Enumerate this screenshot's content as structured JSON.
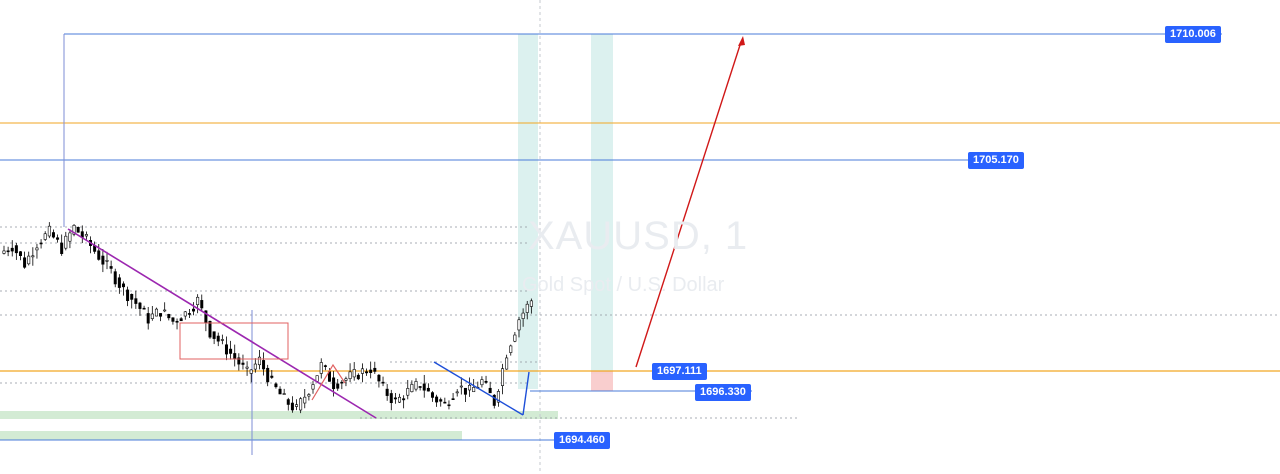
{
  "watermark": {
    "symbol": "XAUUSD, 1",
    "description": "Gold Spot / U.S. Dollar"
  },
  "colors": {
    "candle": "#000000",
    "blue_line": "#4a7bd8",
    "orange_line": "#f2a623",
    "trend_purple": "#9c27b0",
    "arrow_red": "#d01818",
    "shade_teal": "#b2dfdb",
    "zone_green": "#c8e6c9",
    "box_red": "#e06060"
  },
  "price_labels": [
    "1710.006",
    "1705.170",
    "1697.111",
    "1696.330",
    "1694.460"
  ],
  "chart_data": {
    "type": "candlestick",
    "instrument": "XAUUSD",
    "timeframe": "1",
    "ylim": [
      1693.7,
      1711.3
    ],
    "levels": [
      {
        "label": "1710.006",
        "price": 1710.006,
        "color": "blue"
      },
      {
        "label": "1705.170",
        "price": 1705.17,
        "color": "blue"
      },
      {
        "label": "1697.111",
        "price": 1697.111,
        "color": "orange"
      },
      {
        "label": "1696.330",
        "price": 1696.33,
        "color": "blue"
      },
      {
        "label": "1694.460",
        "price": 1694.46,
        "color": "blue"
      }
    ],
    "additional_levels": [
      {
        "price": 1706.9,
        "color": "orange"
      },
      {
        "price": 1697.1,
        "color": "orange"
      }
    ],
    "price_path": [
      {
        "t": 0,
        "p": 1701.6
      },
      {
        "t": 3,
        "p": 1701.9
      },
      {
        "t": 6,
        "p": 1701.2
      },
      {
        "t": 9,
        "p": 1702.0
      },
      {
        "t": 12,
        "p": 1702.4
      },
      {
        "t": 15,
        "p": 1701.8
      },
      {
        "t": 18,
        "p": 1702.6
      },
      {
        "t": 21,
        "p": 1702.1
      },
      {
        "t": 24,
        "p": 1701.5
      },
      {
        "t": 27,
        "p": 1700.9
      },
      {
        "t": 30,
        "p": 1700.2
      },
      {
        "t": 33,
        "p": 1699.7
      },
      {
        "t": 36,
        "p": 1699.1
      },
      {
        "t": 39,
        "p": 1699.4
      },
      {
        "t": 42,
        "p": 1699.0
      },
      {
        "t": 45,
        "p": 1699.3
      },
      {
        "t": 48,
        "p": 1699.8
      },
      {
        "t": 51,
        "p": 1698.6
      },
      {
        "t": 54,
        "p": 1698.1
      },
      {
        "t": 57,
        "p": 1697.6
      },
      {
        "t": 60,
        "p": 1697.0
      },
      {
        "t": 63,
        "p": 1697.5
      },
      {
        "t": 66,
        "p": 1696.6
      },
      {
        "t": 69,
        "p": 1696.0
      },
      {
        "t": 72,
        "p": 1695.6
      },
      {
        "t": 75,
        "p": 1696.4
      },
      {
        "t": 78,
        "p": 1697.3
      },
      {
        "t": 81,
        "p": 1696.6
      },
      {
        "t": 84,
        "p": 1696.8
      },
      {
        "t": 87,
        "p": 1697.0
      },
      {
        "t": 90,
        "p": 1697.2
      },
      {
        "t": 93,
        "p": 1696.4
      },
      {
        "t": 96,
        "p": 1695.9
      },
      {
        "t": 99,
        "p": 1696.3
      },
      {
        "t": 102,
        "p": 1696.6
      },
      {
        "t": 105,
        "p": 1696.1
      },
      {
        "t": 108,
        "p": 1695.8
      },
      {
        "t": 111,
        "p": 1696.5
      },
      {
        "t": 114,
        "p": 1696.3
      },
      {
        "t": 117,
        "p": 1696.7
      },
      {
        "t": 120,
        "p": 1695.9
      },
      {
        "t": 123,
        "p": 1697.8
      },
      {
        "t": 126,
        "p": 1699.1
      },
      {
        "t": 129,
        "p": 1699.8
      }
    ]
  }
}
